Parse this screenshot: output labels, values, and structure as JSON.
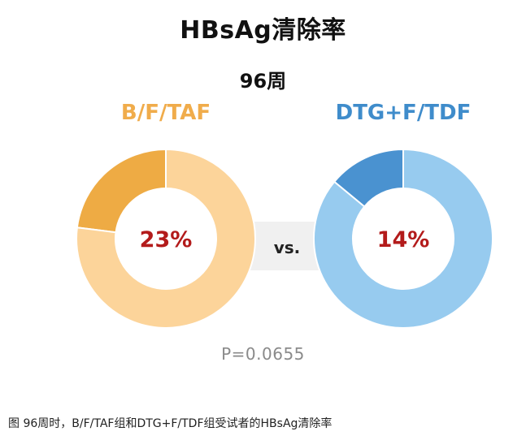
{
  "title": "HBsAg清除率",
  "subtitle": "96周",
  "vs_label": "vs.",
  "p_value": "P=0.0655",
  "caption": "图 96周时，B/F/TAF组和DTG+F/TDF组受试者的HBsAg清除率",
  "chart_data": [
    {
      "type": "pie",
      "title": "B/F/TAF",
      "center_label": "23%",
      "values": [
        23,
        77
      ],
      "colors": [
        "#eeab44",
        "#fcd49a"
      ],
      "title_color": "#f0ac4b"
    },
    {
      "type": "pie",
      "title": "DTG+F/TDF",
      "center_label": "14%",
      "values": [
        14,
        86
      ],
      "colors": [
        "#4a92d0",
        "#97cbef"
      ],
      "title_color": "#3f8ccb"
    }
  ],
  "center_label_color": "#b31b1b",
  "vs_box_color": "#f0f0f0"
}
